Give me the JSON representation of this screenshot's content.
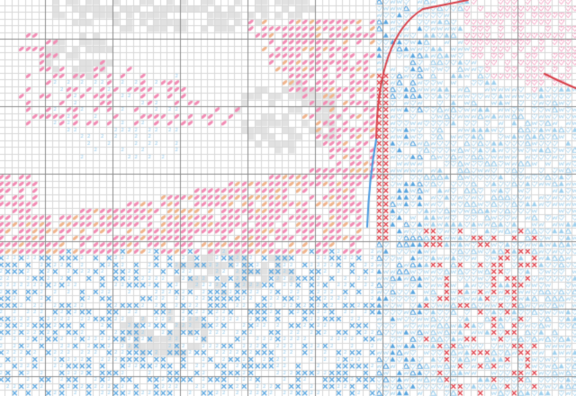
{
  "pattern": {
    "colors": {
      "grid_minor": "#d8d8d8",
      "grid_major": "#8c8c8c",
      "pink": "#f28cb4",
      "peach": "#f0b48c",
      "light_blue": "#9fd0ee",
      "blue": "#5aa6e0",
      "red": "#e0404a",
      "gray": "#c8c8c8",
      "backstitch_red": "#d8404a",
      "backstitch_blue": "#4a9ae0"
    },
    "symbols": [
      "oval",
      "digit-2",
      "cross",
      "triangle",
      "heart",
      "w-mark",
      "gray-block"
    ]
  }
}
